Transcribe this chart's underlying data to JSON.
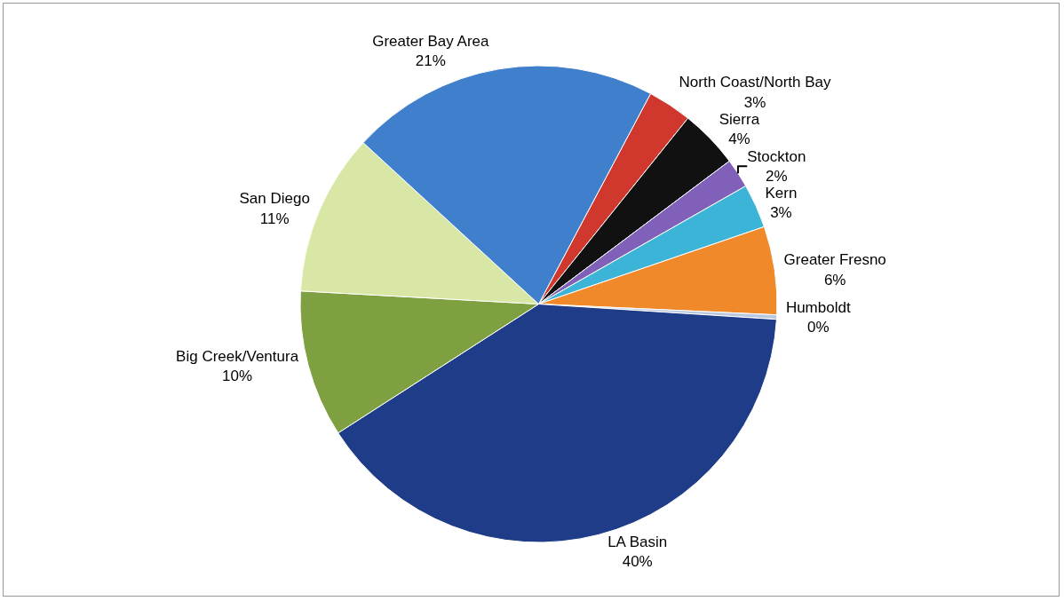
{
  "chart_data": {
    "type": "pie",
    "categories": [
      "North Coast/North Bay",
      "Sierra",
      "Stockton",
      "Kern",
      "Greater Fresno",
      "Humboldt",
      "LA Basin",
      "Big Creek/Ventura",
      "San Diego",
      "Greater Bay Area"
    ],
    "values": [
      3,
      4,
      2,
      3,
      6,
      0.3,
      40,
      10,
      11,
      21
    ],
    "value_labels": [
      "3%",
      "4%",
      "2%",
      "3%",
      "6%",
      "0%",
      "40%",
      "10%",
      "11%",
      "21%"
    ],
    "colors": [
      "#d0382e",
      "#111111",
      "#8060b8",
      "#3cb4d8",
      "#f0892a",
      "#b8c8e0",
      "#1f3c88",
      "#7fa040",
      "#d8e6a6",
      "#3f7fcc"
    ],
    "legend": false
  }
}
